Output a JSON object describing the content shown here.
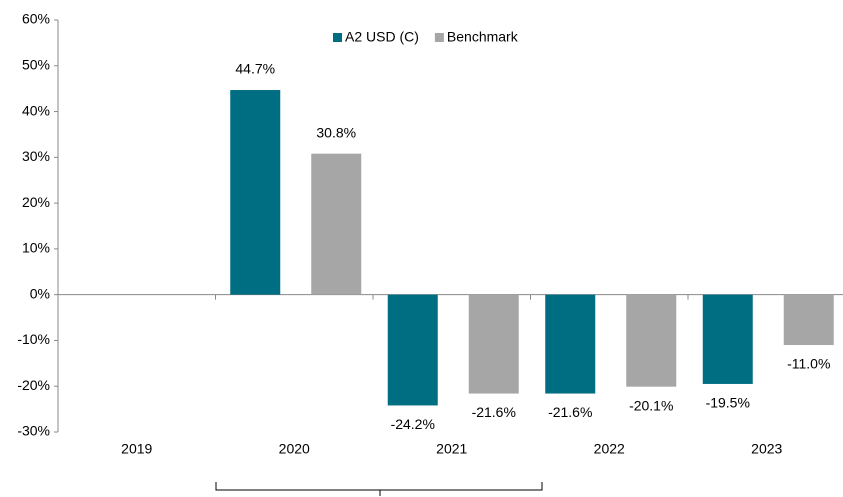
{
  "chart_data": {
    "type": "bar",
    "categories": [
      "2019",
      "2020",
      "2021",
      "2022",
      "2023"
    ],
    "series": [
      {
        "name": "A2 USD (C)",
        "color": "#006e82",
        "values": [
          null,
          44.7,
          -24.2,
          -21.6,
          -19.5
        ],
        "value_labels": [
          null,
          "44.7%",
          "-24.2%",
          "-21.6%",
          "-19.5%"
        ]
      },
      {
        "name": "Benchmark",
        "color": "#a6a6a6",
        "values": [
          null,
          30.8,
          -21.6,
          -20.1,
          -11.0
        ],
        "value_labels": [
          null,
          "30.8%",
          "-21.6%",
          "-20.1%",
          "-11.0%"
        ]
      }
    ],
    "ylim": [
      -30,
      60
    ],
    "yticks": [
      {
        "value": -30,
        "label": "-30%"
      },
      {
        "value": -20,
        "label": "-20%"
      },
      {
        "value": -10,
        "label": "-10%"
      },
      {
        "value": 0,
        "label": "0%"
      },
      {
        "value": 10,
        "label": "10%"
      },
      {
        "value": 20,
        "label": "20%"
      },
      {
        "value": 30,
        "label": "30%"
      },
      {
        "value": 40,
        "label": "40%"
      },
      {
        "value": 50,
        "label": "50%"
      },
      {
        "value": 60,
        "label": "60%"
      }
    ],
    "legend": "top"
  }
}
